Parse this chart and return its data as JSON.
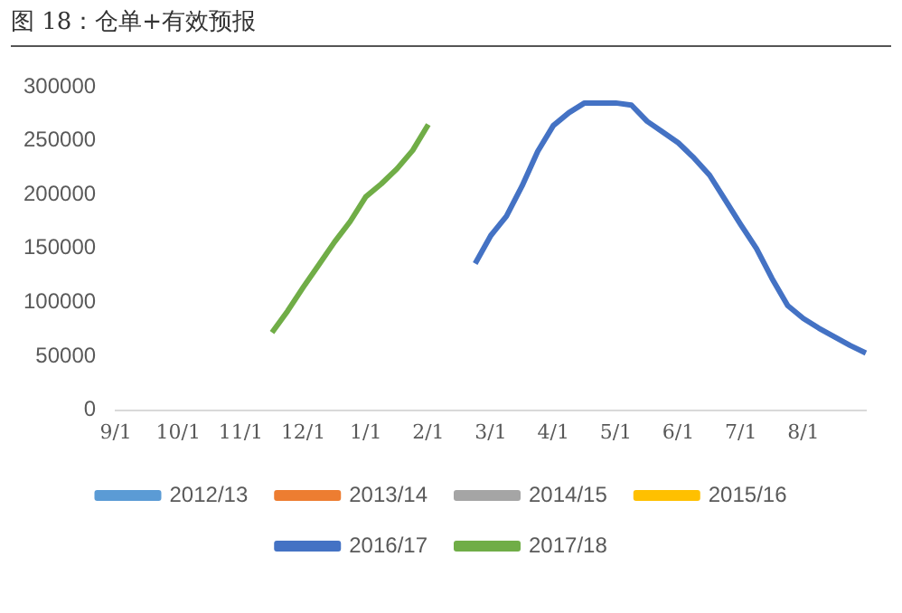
{
  "chart_data": {
    "type": "line",
    "title": "图 18：仓单+有效预报",
    "categories": [
      "9/1",
      null,
      null,
      null,
      "10/1",
      null,
      null,
      null,
      "11/1",
      null,
      null,
      null,
      "12/1",
      null,
      null,
      null,
      "1/1",
      null,
      null,
      null,
      "2/1",
      null,
      null,
      null,
      "3/1",
      null,
      null,
      null,
      "4/1",
      null,
      null,
      null,
      "5/1",
      null,
      null,
      null,
      "6/1",
      null,
      null,
      null,
      "7/1",
      null,
      null,
      null,
      "8/1",
      null,
      null,
      null,
      null
    ],
    "ylim": [
      0,
      300000
    ],
    "yticks": [
      0,
      50000,
      100000,
      150000,
      200000,
      250000,
      300000
    ],
    "grid": false,
    "legend": "bottom",
    "marker": "none",
    "line_style": "solid",
    "series": [
      {
        "name": "2012/13",
        "color": "#5b9bd5",
        "values": [
          null,
          null,
          null,
          null,
          null,
          null,
          null,
          null,
          null,
          null,
          null,
          null,
          null,
          null,
          null,
          null,
          null,
          null,
          null,
          null,
          null,
          null,
          null,
          null,
          null,
          null,
          null,
          null,
          null,
          null,
          null,
          null,
          null,
          null,
          null,
          null,
          null,
          null,
          null,
          null,
          null,
          null,
          null,
          null,
          null,
          null,
          null,
          null,
          null
        ]
      },
      {
        "name": "2013/14",
        "color": "#ed7d31",
        "values": [
          null,
          null,
          null,
          null,
          null,
          null,
          null,
          null,
          null,
          null,
          null,
          null,
          null,
          null,
          null,
          null,
          null,
          null,
          null,
          null,
          null,
          null,
          null,
          null,
          null,
          null,
          null,
          null,
          null,
          null,
          null,
          null,
          null,
          null,
          null,
          null,
          null,
          null,
          null,
          null,
          null,
          null,
          null,
          null,
          null,
          null,
          null,
          null,
          null
        ]
      },
      {
        "name": "2014/15",
        "color": "#a5a5a5",
        "values": [
          null,
          null,
          null,
          null,
          null,
          null,
          null,
          null,
          null,
          null,
          null,
          null,
          null,
          null,
          null,
          null,
          null,
          null,
          null,
          null,
          null,
          null,
          null,
          null,
          null,
          null,
          null,
          null,
          null,
          null,
          null,
          null,
          null,
          null,
          null,
          null,
          null,
          null,
          null,
          null,
          null,
          null,
          null,
          null,
          null,
          null,
          null,
          null,
          null
        ]
      },
      {
        "name": "2015/16",
        "color": "#ffc000",
        "values": [
          null,
          null,
          null,
          null,
          null,
          null,
          null,
          null,
          null,
          null,
          null,
          null,
          null,
          null,
          null,
          null,
          null,
          null,
          null,
          null,
          null,
          null,
          null,
          null,
          null,
          null,
          null,
          null,
          null,
          null,
          null,
          null,
          null,
          null,
          null,
          null,
          null,
          null,
          null,
          null,
          null,
          null,
          null,
          null,
          null,
          null,
          null,
          null,
          null
        ]
      },
      {
        "name": "2016/17",
        "color": "#4472c4",
        "values": [
          null,
          null,
          null,
          null,
          null,
          null,
          null,
          null,
          null,
          null,
          null,
          null,
          null,
          null,
          null,
          null,
          null,
          null,
          null,
          null,
          null,
          null,
          null,
          136000,
          162000,
          180000,
          208000,
          240000,
          264000,
          276000,
          285000,
          285000,
          285000,
          283000,
          268000,
          258000,
          248000,
          234000,
          218000,
          195000,
          172000,
          150000,
          122000,
          97000,
          85000,
          76000,
          68000,
          60000,
          53000
        ]
      },
      {
        "name": "2017/18",
        "color": "#70ad47",
        "values": [
          null,
          null,
          null,
          null,
          null,
          null,
          null,
          null,
          null,
          null,
          72000,
          92000,
          114000,
          135000,
          156000,
          175000,
          198000,
          210000,
          224000,
          241000,
          265000,
          null,
          null,
          null,
          null,
          null,
          null,
          null,
          null,
          null,
          null,
          null,
          null,
          null,
          null,
          null,
          null,
          null,
          null,
          null,
          null,
          null,
          null,
          null,
          null,
          null,
          null,
          null,
          null
        ]
      }
    ]
  }
}
